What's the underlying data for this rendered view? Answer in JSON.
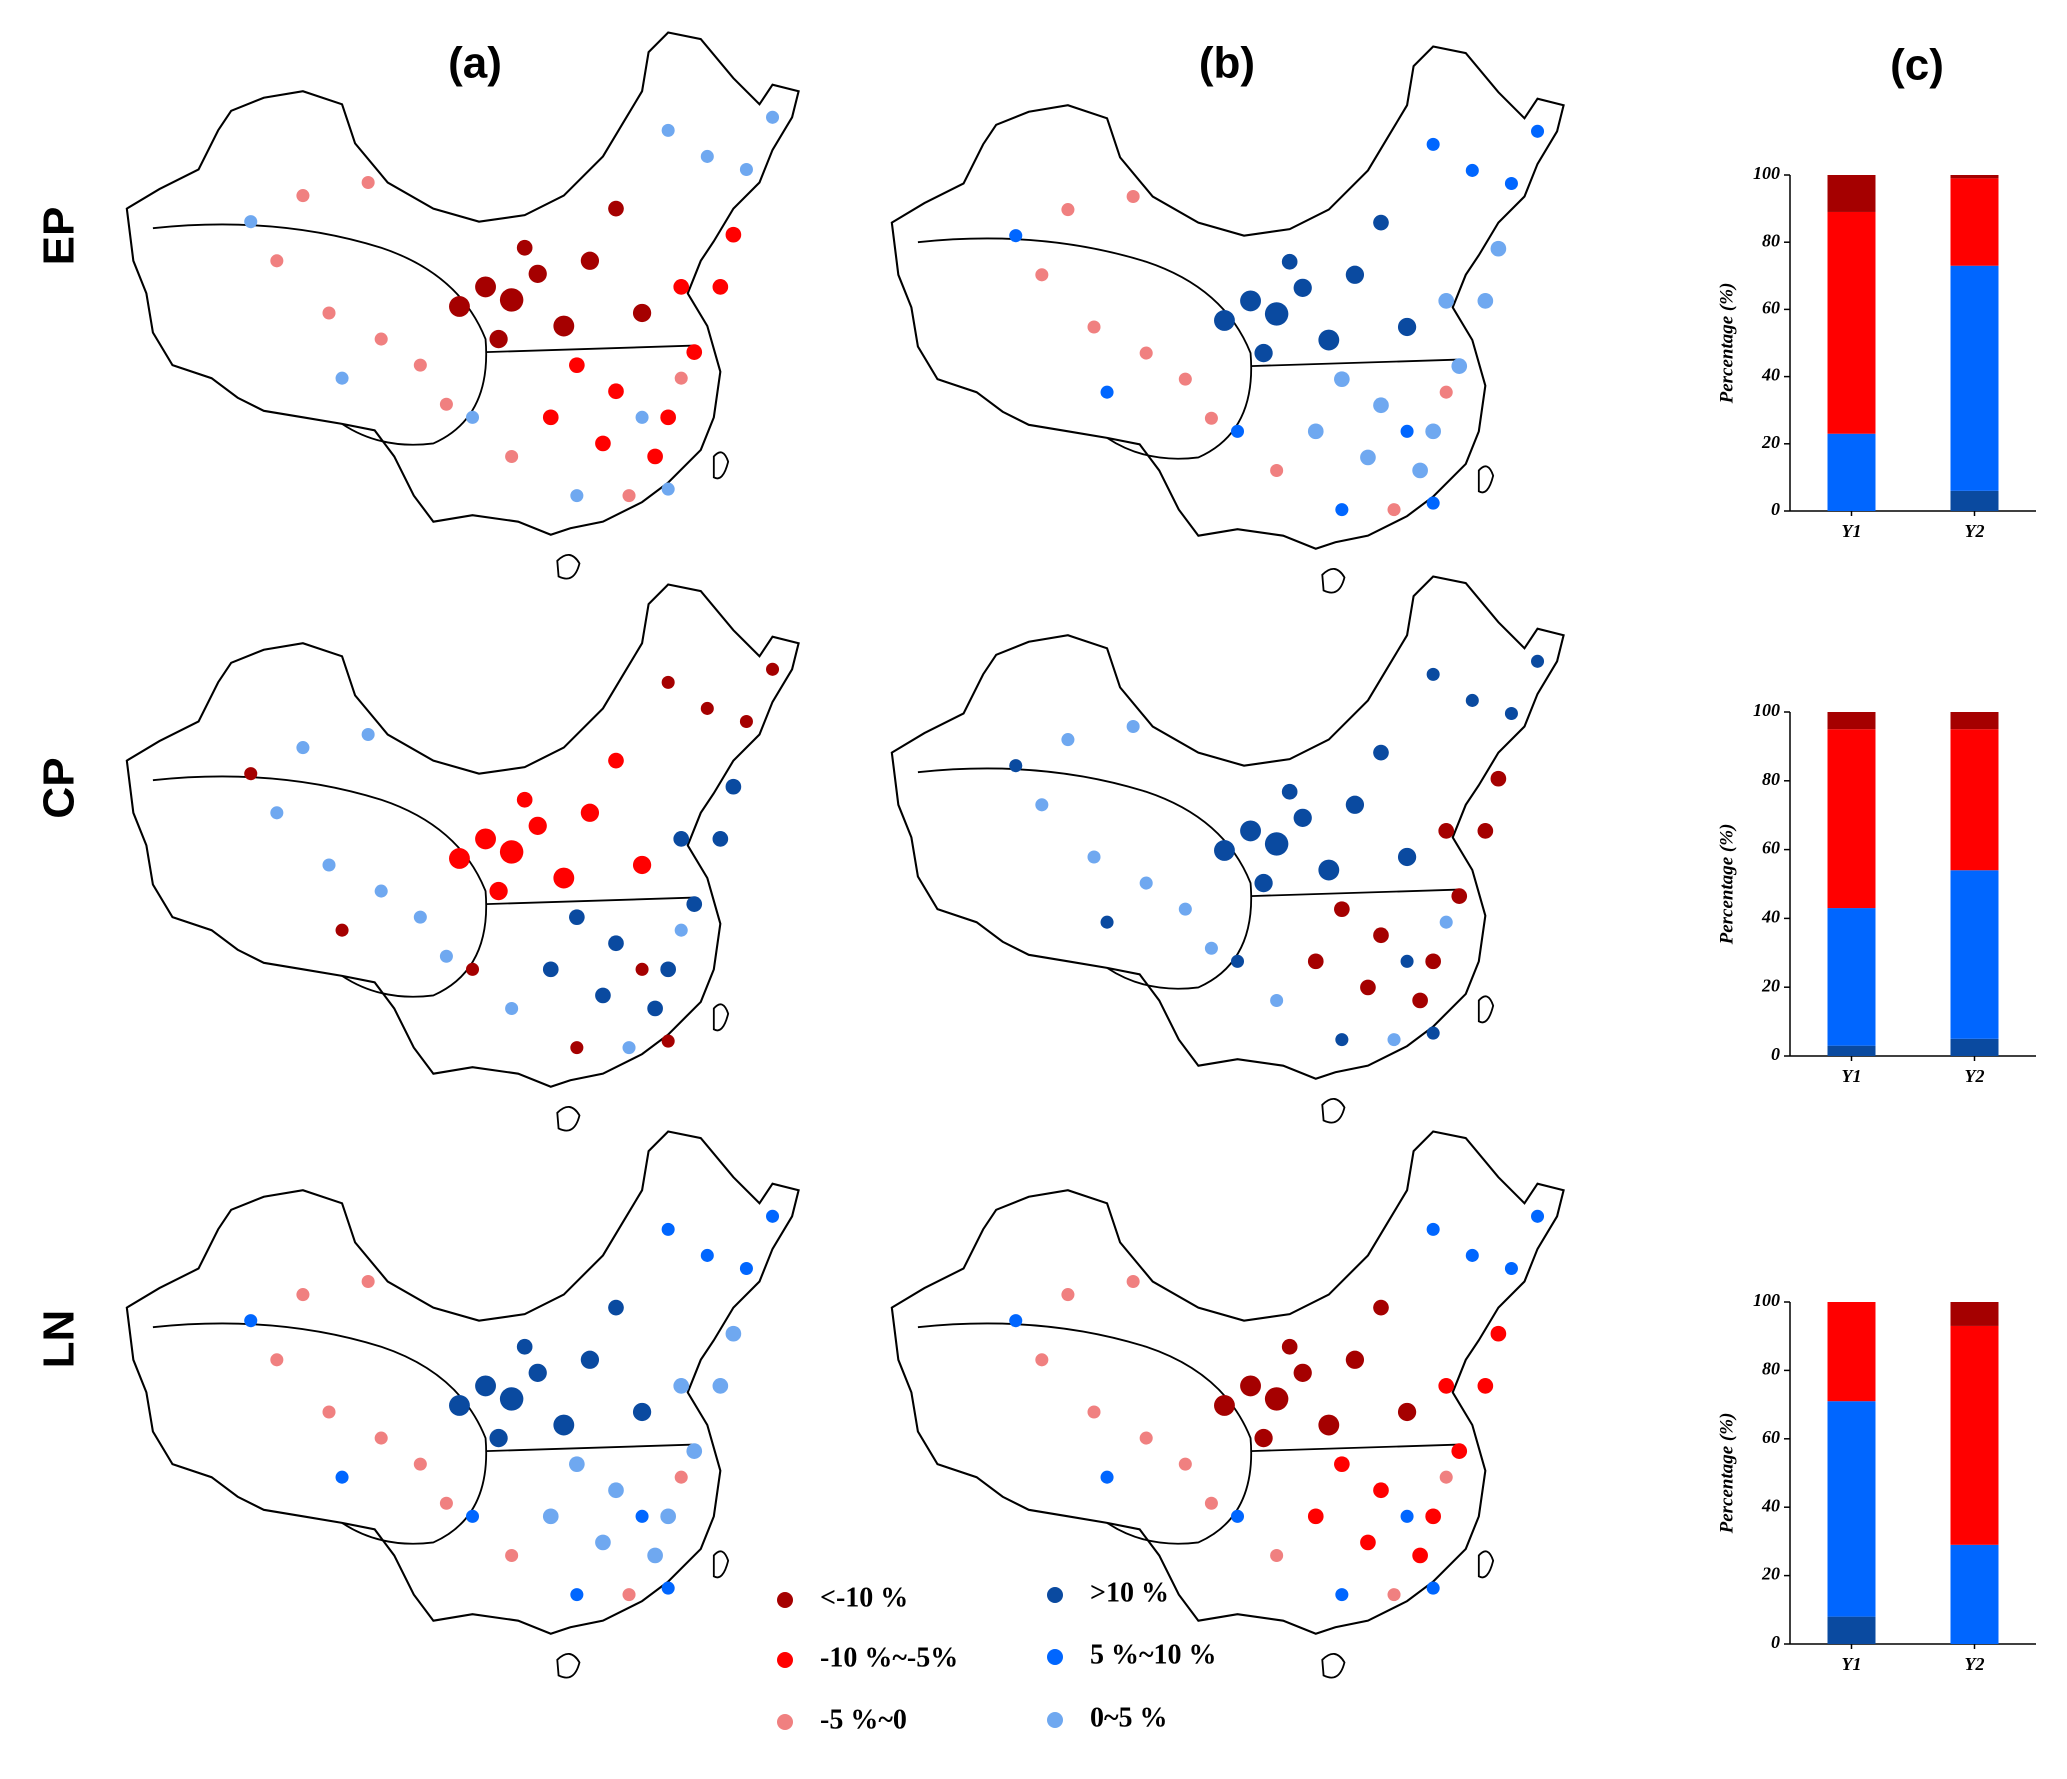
{
  "panel_labels": [
    "(a)",
    "(b)",
    "(c)"
  ],
  "row_labels": [
    "EP",
    "CP",
    "LN"
  ],
  "legend": [
    {
      "label": "<-10 %",
      "color": "#a50000"
    },
    {
      "label": "-10 %~-5%",
      "color": "#ff0000"
    },
    {
      "label": "-5 %~0",
      "color": "#f08080"
    },
    {
      "label": ">10 %",
      "color": "#0a4aa0"
    },
    {
      "label": "5 %~10 %",
      "color": "#0066ff"
    },
    {
      "label": "0~5 %",
      "color": "#6fa8f0"
    }
  ],
  "chart_data": [
    {
      "type": "bar",
      "stacked": true,
      "categories": [
        "Y1",
        "Y2"
      ],
      "ylabel": "Percentage  (%)",
      "ylim": [
        0,
        100
      ],
      "yticks": [
        0,
        20,
        40,
        60,
        80,
        100
      ],
      "series": [
        {
          "color": "#0a4aa0",
          "values": [
            0,
            6
          ]
        },
        {
          "color": "#0066ff",
          "values": [
            23,
            67
          ]
        },
        {
          "color": "#ff0000",
          "values": [
            66,
            26
          ]
        },
        {
          "color": "#a50000",
          "values": [
            11,
            1
          ]
        }
      ]
    },
    {
      "type": "bar",
      "stacked": true,
      "categories": [
        "Y1",
        "Y2"
      ],
      "ylabel": "Percentage  (%)",
      "ylim": [
        0,
        100
      ],
      "yticks": [
        0,
        20,
        40,
        60,
        80,
        100
      ],
      "series": [
        {
          "color": "#0a4aa0",
          "values": [
            3,
            5
          ]
        },
        {
          "color": "#0066ff",
          "values": [
            40,
            49
          ]
        },
        {
          "color": "#ff0000",
          "values": [
            52,
            41
          ]
        },
        {
          "color": "#a50000",
          "values": [
            5,
            5
          ]
        }
      ]
    },
    {
      "type": "bar",
      "stacked": true,
      "categories": [
        "Y1",
        "Y2"
      ],
      "ylabel": "Percentage  (%)",
      "ylim": [
        0,
        100
      ],
      "yticks": [
        0,
        20,
        40,
        60,
        80,
        100
      ],
      "series": [
        {
          "color": "#0a4aa0",
          "values": [
            8,
            0
          ]
        },
        {
          "color": "#0066ff",
          "values": [
            63,
            29
          ]
        },
        {
          "color": "#ff0000",
          "values": [
            29,
            64
          ]
        },
        {
          "color": "#a50000",
          "values": [
            0,
            7
          ]
        }
      ]
    }
  ]
}
